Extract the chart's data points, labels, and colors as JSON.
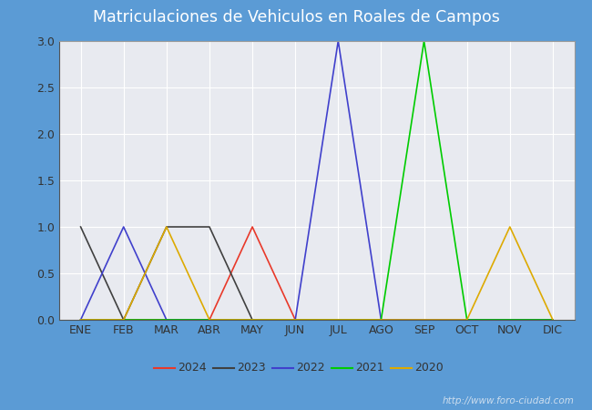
{
  "title": "Matriculaciones de Vehiculos en Roales de Campos",
  "title_color": "#ffffff",
  "title_bg_color": "#5b9bd5",
  "months": [
    "ENE",
    "FEB",
    "MAR",
    "ABR",
    "MAY",
    "JUN",
    "JUL",
    "AGO",
    "SEP",
    "OCT",
    "NOV",
    "DIC"
  ],
  "series": {
    "2024": {
      "color": "#e8392a",
      "data": [
        0,
        0,
        0,
        0,
        1,
        0,
        0,
        0,
        0,
        0,
        0,
        0
      ]
    },
    "2023": {
      "color": "#404040",
      "data": [
        1,
        0,
        1,
        1,
        0,
        0,
        0,
        0,
        0,
        0,
        0,
        0
      ]
    },
    "2022": {
      "color": "#4040cc",
      "data": [
        0,
        1,
        0,
        0,
        0,
        0,
        3,
        0,
        0,
        0,
        0,
        0
      ]
    },
    "2021": {
      "color": "#00cc00",
      "data": [
        0,
        0,
        0,
        0,
        0,
        0,
        0,
        0,
        3,
        0,
        0,
        0
      ]
    },
    "2020": {
      "color": "#ddaa00",
      "data": [
        0,
        0,
        1,
        0,
        0,
        0,
        0,
        0,
        0,
        0,
        1,
        0
      ]
    }
  },
  "ylim": [
    0,
    3.0
  ],
  "yticks": [
    0.0,
    0.5,
    1.0,
    1.5,
    2.0,
    2.5,
    3.0
  ],
  "legend_order": [
    "2024",
    "2023",
    "2022",
    "2021",
    "2020"
  ],
  "watermark_text": "http://www.foro-ciudad.com",
  "outer_bg": "#5b9bd5",
  "plot_bg": "#e8eaf0",
  "grid_color": "#ffffff",
  "title_fontsize": 12.5,
  "tick_fontsize": 9,
  "legend_fontsize": 9
}
